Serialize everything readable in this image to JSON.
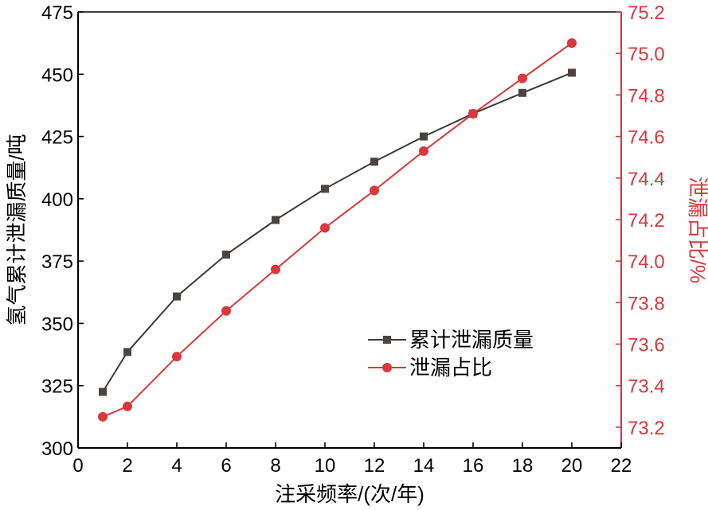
{
  "chart_data": {
    "type": "line",
    "xlabel": "注采频率/(次/年)",
    "ylabel_left": "氢气累计泄漏质量/吨",
    "ylabel_right": "泄漏占比/%",
    "x_axis": {
      "range": [
        0,
        22
      ],
      "ticks": [
        0,
        2,
        4,
        6,
        8,
        10,
        12,
        14,
        16,
        18,
        20,
        22
      ]
    },
    "y_left": {
      "range": [
        300,
        475
      ],
      "ticks": [
        300,
        325,
        350,
        375,
        400,
        425,
        450,
        475
      ]
    },
    "y_right": {
      "range": [
        73.1,
        75.2
      ],
      "ticks": [
        "73.2",
        "73.4",
        "73.6",
        "73.8",
        "74.0",
        "74.2",
        "74.4",
        "74.6",
        "74.8",
        "75.0",
        "75.2"
      ]
    },
    "legend_position": "center-right",
    "grid": false,
    "series": [
      {
        "name": "累计泄漏质量",
        "axis": "left",
        "marker": "square",
        "color": "#3a3a3a",
        "marker_color": "#4a4540",
        "x": [
          1,
          2,
          4,
          6,
          8,
          10,
          12,
          14,
          16,
          18,
          20
        ],
        "y": [
          322.5,
          338.5,
          360.8,
          377.6,
          391.5,
          404.0,
          414.9,
          425.0,
          434.2,
          442.5,
          450.6
        ]
      },
      {
        "name": "泄漏占比",
        "axis": "right",
        "marker": "circle",
        "color": "#d9383c",
        "marker_color": "#d9383c",
        "x": [
          1,
          2,
          4,
          6,
          8,
          10,
          12,
          14,
          16,
          18,
          20
        ],
        "y": [
          73.25,
          73.3,
          73.54,
          73.76,
          73.96,
          74.16,
          74.34,
          74.53,
          74.71,
          74.88,
          75.05
        ]
      }
    ]
  }
}
